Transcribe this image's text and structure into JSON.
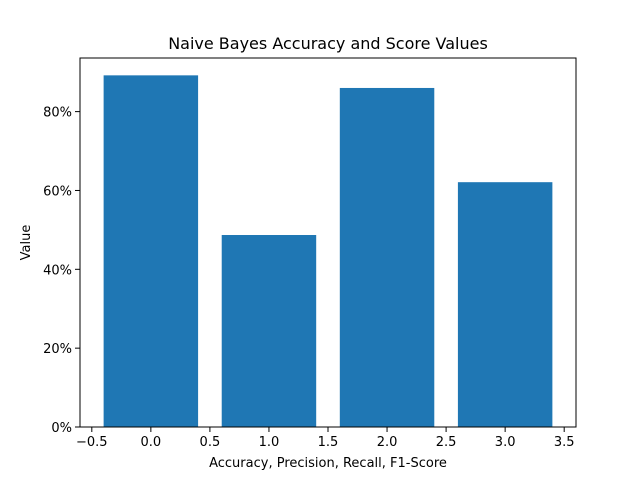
{
  "chart_data": {
    "type": "bar",
    "title": "Naive Bayes Accuracy and Score Values",
    "xlabel": "Accuracy, Precision, Recall, F1-Score",
    "ylabel": "Value",
    "x": [
      0,
      1,
      2,
      3
    ],
    "values": [
      89.2,
      48.7,
      86.0,
      62.1
    ],
    "bar_width": 0.8,
    "xlim": [
      -0.6,
      3.6
    ],
    "ylim": [
      0,
      93.6
    ],
    "xticks": [
      -0.5,
      0.0,
      0.5,
      1.0,
      1.5,
      2.0,
      2.5,
      3.0,
      3.5
    ],
    "xtick_labels": [
      "−0.5",
      "0.0",
      "0.5",
      "1.0",
      "1.5",
      "2.0",
      "2.5",
      "3.0",
      "3.5"
    ],
    "yticks": [
      0,
      20,
      40,
      60,
      80
    ],
    "ytick_labels": [
      "0%",
      "20%",
      "40%",
      "60%",
      "80%"
    ],
    "bar_color": "#1f77b4",
    "grid": false,
    "legend": false
  }
}
